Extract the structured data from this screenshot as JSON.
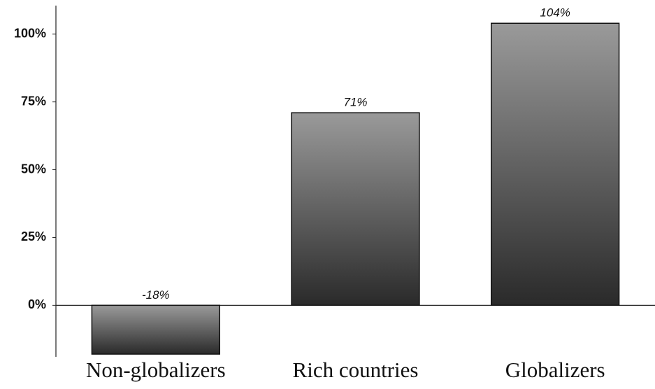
{
  "chart_data": {
    "type": "bar",
    "categories": [
      "Non-globalizers",
      "Rich countries",
      "Globalizers"
    ],
    "values": [
      -18,
      71,
      104
    ],
    "value_labels": [
      "-18%",
      "71%",
      "104%"
    ],
    "color": "#6a6a6a",
    "ylim": [
      -19,
      110
    ],
    "yticks": [
      {
        "value": 0,
        "label": "0%"
      },
      {
        "value": 25,
        "label": "25%"
      },
      {
        "value": 50,
        "label": "50%"
      },
      {
        "value": 75,
        "label": "75%"
      },
      {
        "value": 100,
        "label": "100%"
      }
    ],
    "grid": false
  }
}
